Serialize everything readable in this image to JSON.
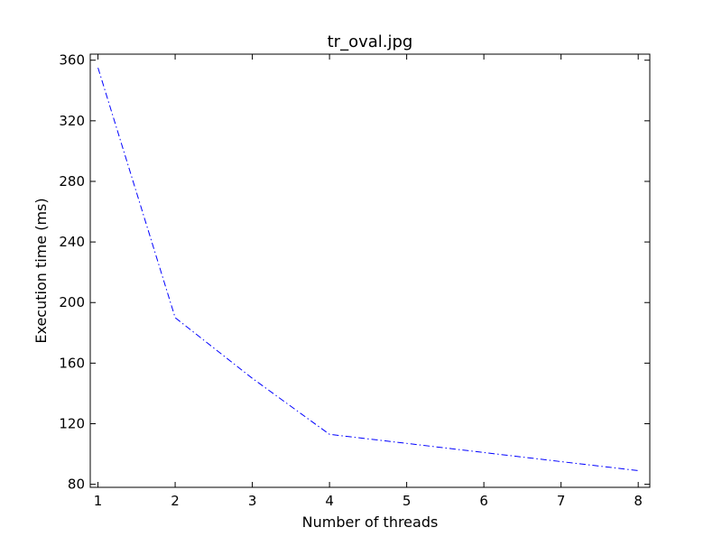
{
  "chart_data": {
    "type": "line",
    "title": "tr_oval.jpg",
    "xlabel": "Number of threads",
    "ylabel": "Execution time (ms)",
    "xlim": [
      0.9,
      8.15
    ],
    "ylim": [
      78,
      364
    ],
    "xticks": [
      1,
      2,
      3,
      4,
      5,
      6,
      7,
      8
    ],
    "yticks": [
      80,
      120,
      160,
      200,
      240,
      280,
      320,
      360
    ],
    "grid": false,
    "series": [
      {
        "color": "#0000ff",
        "line_style": "dash-dot",
        "x": [
          1,
          2,
          3,
          4,
          5,
          6,
          7,
          8
        ],
        "y": [
          355,
          190,
          150,
          113,
          107,
          101,
          95,
          89
        ]
      }
    ]
  }
}
